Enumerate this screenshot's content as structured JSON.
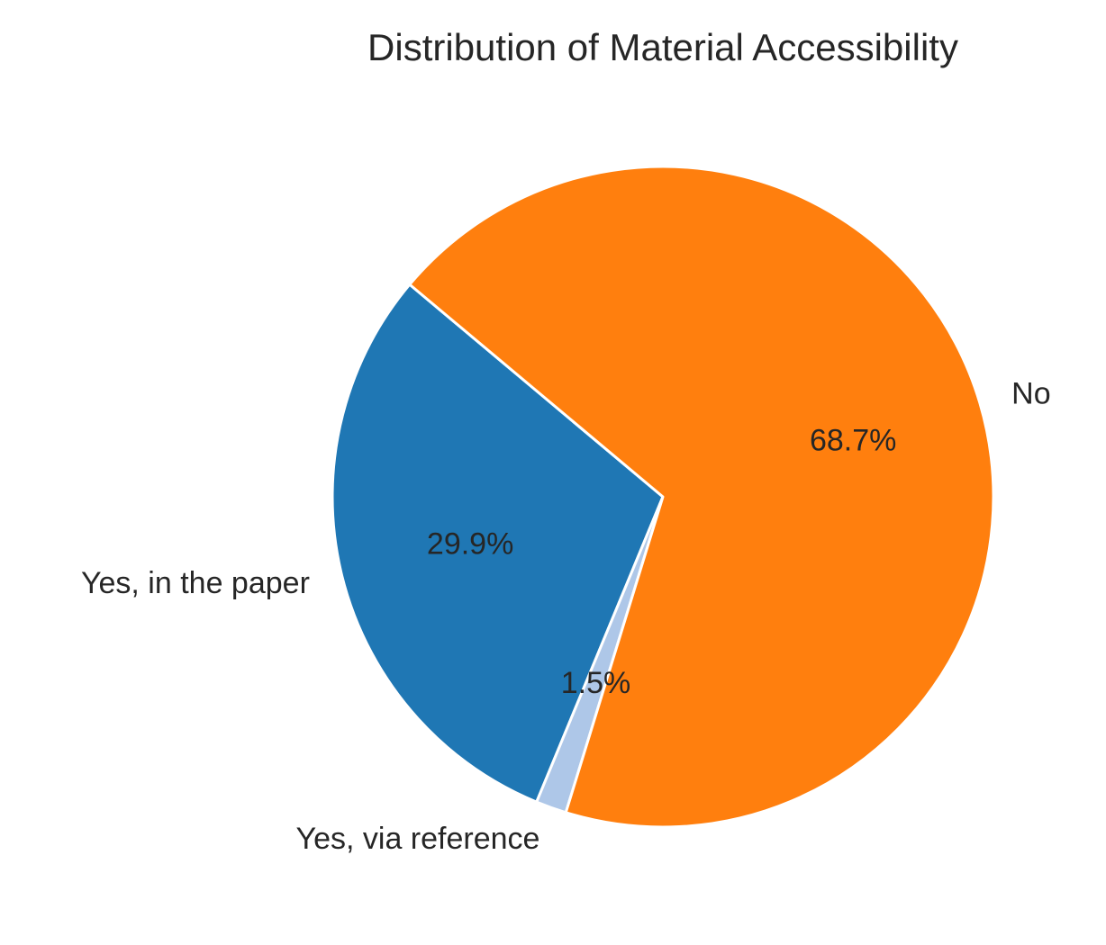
{
  "chart_data": {
    "type": "pie",
    "title": "Distribution of Material Accessibility",
    "slices": [
      {
        "label": "Yes, in the paper",
        "value": 29.9,
        "percent_label": "29.9%",
        "color": "#1f77b4"
      },
      {
        "label": "Yes, via reference",
        "value": 1.5,
        "percent_label": "1.5%",
        "color": "#aec7e8"
      },
      {
        "label": "No",
        "value": 68.7,
        "percent_label": "68.7%",
        "color": "#ff7f0e"
      }
    ],
    "start_angle_deg": 140,
    "direction": "counterclockwise",
    "wedge_edge_color": "#ffffff"
  }
}
